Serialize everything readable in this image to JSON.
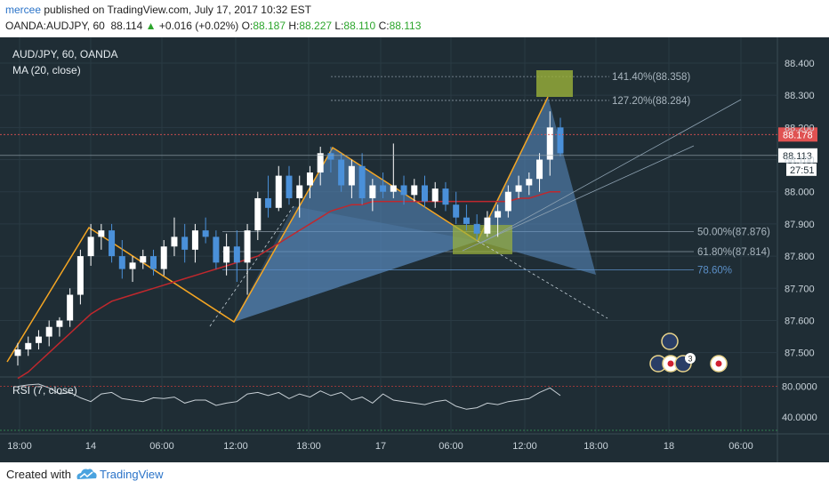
{
  "header": {
    "user": "mercee",
    "published": "published on TradingView.com, July 17, 2017 10:32 EST",
    "symbol_tf": "OANDA:AUDJPY, 60",
    "last": "88.114",
    "change": "+0.016 (+0.02%)",
    "o_label": "O:",
    "o": "88.187",
    "h_label": "H:",
    "h": "88.227",
    "l_label": "L:",
    "l": "88.110",
    "c_label": "C:",
    "c": "88.113"
  },
  "legend": {
    "symbol": "AUD/JPY, 60, OANDA",
    "ma": "MA (20, close)",
    "rsi": "RSI (7, close)"
  },
  "footer": {
    "created_with": "Created with",
    "brand": "TradingView"
  },
  "colors": {
    "background": "#1f2d35",
    "up_candle": "#ffffff",
    "down_candle": "#4a90d9",
    "harmonic_fill": "#5b8fc7",
    "harmonic_line": "#f5a623",
    "ma_line": "#c0282d",
    "zone_fill": "#9bb23a",
    "current_price": "#e05252"
  },
  "chart_data": {
    "type": "candlestick",
    "title": "AUD/JPY, 60, OANDA",
    "ylim": [
      87.43,
      88.48
    ],
    "y_ticks": [
      "88.400",
      "88.300",
      "88.200",
      "88.100",
      "88.000",
      "87.900",
      "87.800",
      "87.700",
      "87.600",
      "87.500"
    ],
    "x_ticks": [
      "18:00",
      "14",
      "06:00",
      "12:00",
      "18:00",
      "17",
      "06:00",
      "12:00",
      "18:00",
      "18",
      "06:00"
    ],
    "price_labels": [
      {
        "label": "88.178",
        "value": 88.178,
        "kind": "current"
      },
      {
        "label": "88.113",
        "value": 88.113,
        "kind": "last"
      },
      {
        "label": "27:51",
        "kind": "countdown"
      }
    ],
    "fib_levels": [
      {
        "label": "141.40%(88.358)",
        "value": 88.358
      },
      {
        "label": "127.20%(88.284)",
        "value": 88.284
      },
      {
        "label": "50.00%(87.876)",
        "value": 87.876
      },
      {
        "label": "61.80%(87.814)",
        "value": 87.814
      },
      {
        "label": "78.60%",
        "value": 87.757
      }
    ],
    "candles": [
      {
        "o": 87.49,
        "h": 87.53,
        "l": 87.46,
        "c": 87.51
      },
      {
        "o": 87.51,
        "h": 87.55,
        "l": 87.49,
        "c": 87.53
      },
      {
        "o": 87.53,
        "h": 87.57,
        "l": 87.51,
        "c": 87.55
      },
      {
        "o": 87.55,
        "h": 87.6,
        "l": 87.52,
        "c": 87.58
      },
      {
        "o": 87.58,
        "h": 87.61,
        "l": 87.55,
        "c": 87.6
      },
      {
        "o": 87.6,
        "h": 87.7,
        "l": 87.58,
        "c": 87.68
      },
      {
        "o": 87.68,
        "h": 87.82,
        "l": 87.65,
        "c": 87.8
      },
      {
        "o": 87.8,
        "h": 87.9,
        "l": 87.77,
        "c": 87.86
      },
      {
        "o": 87.86,
        "h": 87.9,
        "l": 87.82,
        "c": 87.88
      },
      {
        "o": 87.88,
        "h": 87.9,
        "l": 87.78,
        "c": 87.8
      },
      {
        "o": 87.8,
        "h": 87.85,
        "l": 87.73,
        "c": 87.76
      },
      {
        "o": 87.76,
        "h": 87.8,
        "l": 87.72,
        "c": 87.78
      },
      {
        "o": 87.78,
        "h": 87.82,
        "l": 87.76,
        "c": 87.8
      },
      {
        "o": 87.8,
        "h": 87.82,
        "l": 87.74,
        "c": 87.76
      },
      {
        "o": 87.76,
        "h": 87.85,
        "l": 87.74,
        "c": 87.83
      },
      {
        "o": 87.83,
        "h": 87.92,
        "l": 87.8,
        "c": 87.86
      },
      {
        "o": 87.86,
        "h": 87.9,
        "l": 87.78,
        "c": 87.82
      },
      {
        "o": 87.82,
        "h": 87.9,
        "l": 87.78,
        "c": 87.88
      },
      {
        "o": 87.88,
        "h": 87.92,
        "l": 87.84,
        "c": 87.86
      },
      {
        "o": 87.86,
        "h": 87.88,
        "l": 87.76,
        "c": 87.78
      },
      {
        "o": 87.78,
        "h": 87.87,
        "l": 87.74,
        "c": 87.83
      },
      {
        "o": 87.83,
        "h": 87.88,
        "l": 87.72,
        "c": 87.78
      },
      {
        "o": 87.78,
        "h": 87.9,
        "l": 87.68,
        "c": 87.88
      },
      {
        "o": 87.88,
        "h": 88.0,
        "l": 87.85,
        "c": 87.98
      },
      {
        "o": 87.98,
        "h": 88.05,
        "l": 87.92,
        "c": 87.95
      },
      {
        "o": 87.95,
        "h": 88.08,
        "l": 87.94,
        "c": 88.05
      },
      {
        "o": 88.05,
        "h": 88.08,
        "l": 87.96,
        "c": 87.98
      },
      {
        "o": 87.98,
        "h": 88.05,
        "l": 87.92,
        "c": 88.02
      },
      {
        "o": 88.02,
        "h": 88.08,
        "l": 87.98,
        "c": 88.06
      },
      {
        "o": 88.06,
        "h": 88.14,
        "l": 88.02,
        "c": 88.12
      },
      {
        "o": 88.12,
        "h": 88.14,
        "l": 88.06,
        "c": 88.1
      },
      {
        "o": 88.1,
        "h": 88.12,
        "l": 88.0,
        "c": 88.02
      },
      {
        "o": 88.02,
        "h": 88.1,
        "l": 87.98,
        "c": 88.08
      },
      {
        "o": 88.08,
        "h": 88.12,
        "l": 87.96,
        "c": 87.98
      },
      {
        "o": 87.98,
        "h": 88.04,
        "l": 87.94,
        "c": 88.02
      },
      {
        "o": 88.02,
        "h": 88.06,
        "l": 87.98,
        "c": 88.0
      },
      {
        "o": 88.0,
        "h": 88.15,
        "l": 87.98,
        "c": 88.02
      },
      {
        "o": 88.02,
        "h": 88.05,
        "l": 87.96,
        "c": 87.99
      },
      {
        "o": 87.99,
        "h": 88.04,
        "l": 87.97,
        "c": 88.02
      },
      {
        "o": 88.02,
        "h": 88.05,
        "l": 87.95,
        "c": 87.97
      },
      {
        "o": 87.97,
        "h": 88.03,
        "l": 87.95,
        "c": 88.01
      },
      {
        "o": 88.01,
        "h": 88.03,
        "l": 87.94,
        "c": 87.96
      },
      {
        "o": 87.96,
        "h": 88.0,
        "l": 87.9,
        "c": 87.92
      },
      {
        "o": 87.92,
        "h": 87.96,
        "l": 87.88,
        "c": 87.9
      },
      {
        "o": 87.9,
        "h": 87.93,
        "l": 87.85,
        "c": 87.87
      },
      {
        "o": 87.87,
        "h": 87.94,
        "l": 87.86,
        "c": 87.92
      },
      {
        "o": 87.92,
        "h": 87.96,
        "l": 87.86,
        "c": 87.94
      },
      {
        "o": 87.94,
        "h": 88.02,
        "l": 87.92,
        "c": 88.0
      },
      {
        "o": 88.0,
        "h": 88.05,
        "l": 87.98,
        "c": 88.02
      },
      {
        "o": 88.02,
        "h": 88.06,
        "l": 87.99,
        "c": 88.04
      },
      {
        "o": 88.04,
        "h": 88.12,
        "l": 88.0,
        "c": 88.1
      },
      {
        "o": 88.1,
        "h": 88.25,
        "l": 88.05,
        "c": 88.2
      },
      {
        "o": 88.2,
        "h": 88.23,
        "l": 88.11,
        "c": 88.12
      }
    ],
    "ma": [
      87.42,
      87.44,
      87.47,
      87.5,
      87.53,
      87.56,
      87.59,
      87.62,
      87.64,
      87.66,
      87.67,
      87.68,
      87.69,
      87.7,
      87.71,
      87.72,
      87.73,
      87.74,
      87.75,
      87.76,
      87.77,
      87.78,
      87.79,
      87.8,
      87.82,
      87.84,
      87.86,
      87.88,
      87.9,
      87.92,
      87.94,
      87.95,
      87.96,
      87.96,
      87.97,
      87.97,
      87.97,
      87.97,
      87.97,
      87.97,
      87.97,
      87.97,
      87.97,
      87.97,
      87.97,
      87.97,
      87.97,
      87.97,
      87.98,
      87.98,
      87.99,
      88.0,
      88.0
    ],
    "rsi": {
      "ylim": [
        20,
        90
      ],
      "y_ticks": [
        "80.0000",
        "40.0000"
      ],
      "values": [
        80,
        82,
        83,
        78,
        70,
        72,
        65,
        60,
        70,
        72,
        64,
        62,
        60,
        65,
        64,
        66,
        58,
        62,
        62,
        55,
        58,
        60,
        70,
        72,
        68,
        72,
        64,
        70,
        66,
        74,
        68,
        72,
        62,
        66,
        58,
        70,
        62,
        60,
        58,
        56,
        60,
        62,
        54,
        50,
        52,
        58,
        56,
        60,
        62,
        64,
        72,
        78,
        68
      ]
    }
  }
}
